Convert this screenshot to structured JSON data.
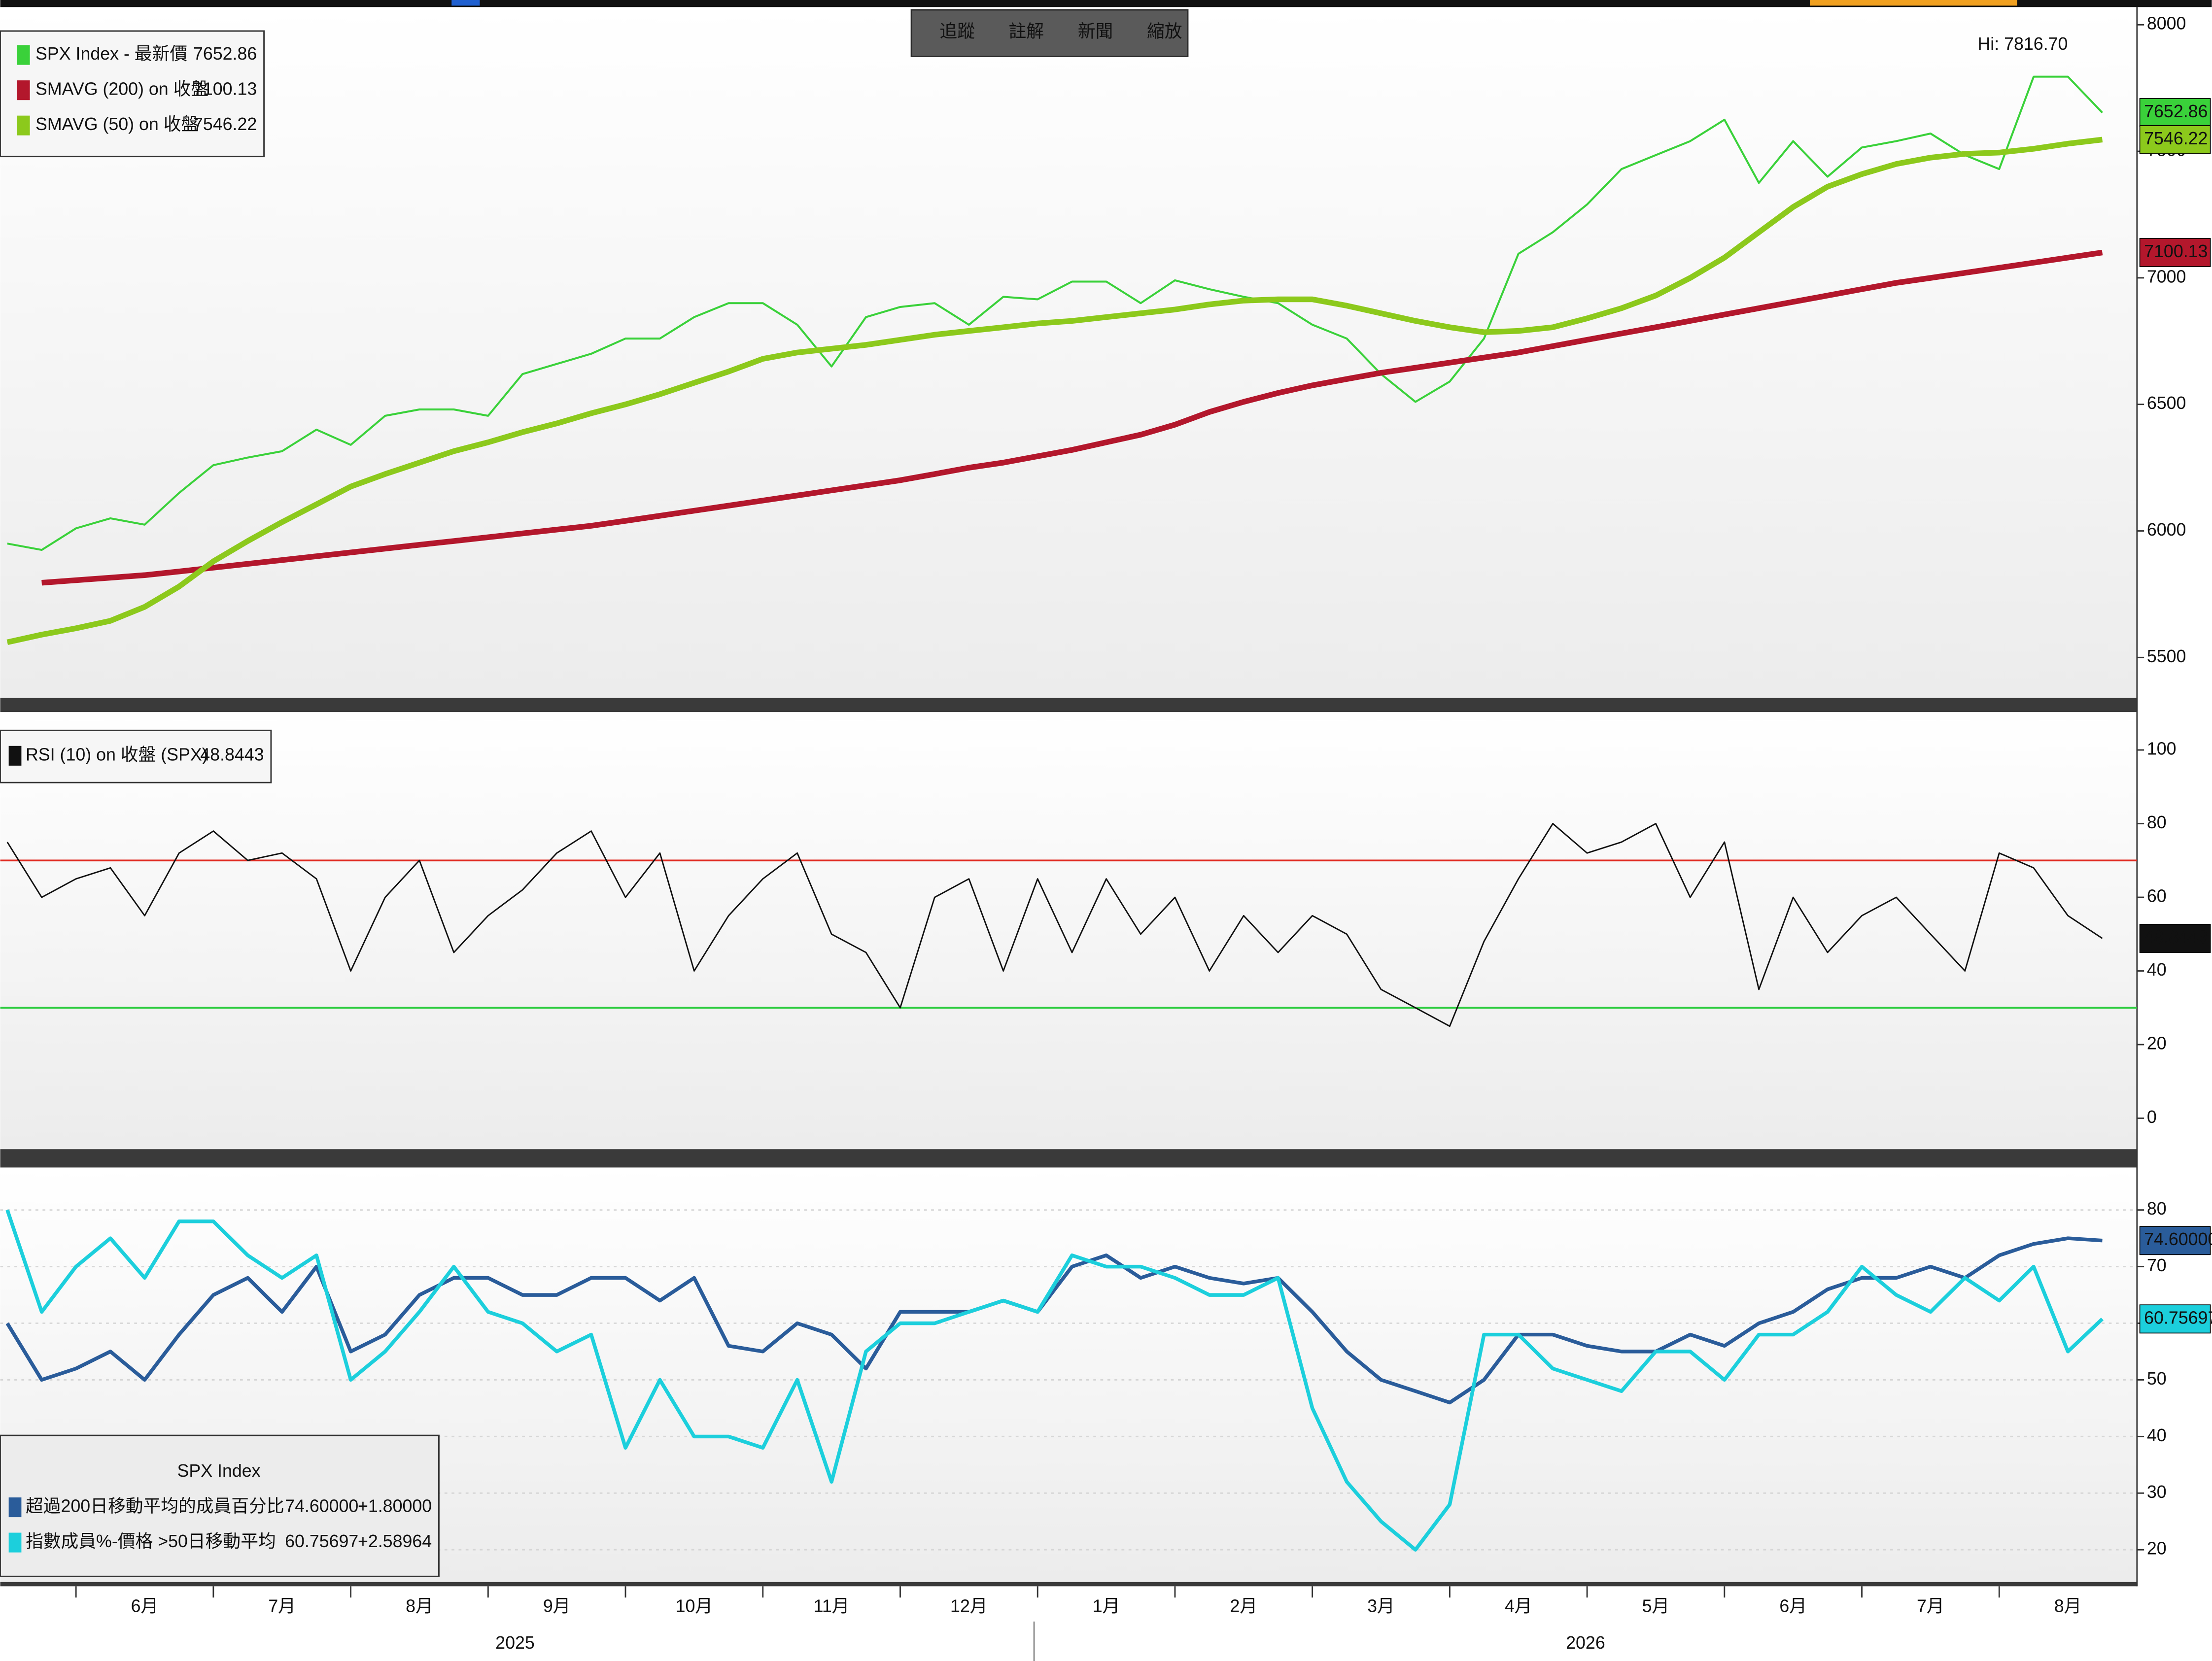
{
  "toolbar": [
    "追蹤",
    "註解",
    "新聞",
    "縮放"
  ],
  "chart_data": [
    {
      "type": "line",
      "annotation": "Hi: 7816.70",
      "annotation_color": "#7ed957",
      "ylim": [
        5340,
        8070
      ],
      "yticks": [
        5500,
        6000,
        6500,
        7000,
        7500,
        8000
      ],
      "series": [
        {
          "name": "SPX Index - 最新價",
          "color": "#3ad13a",
          "width": 1.4,
          "values": [
            5950,
            5925,
            6010,
            6050,
            6025,
            6150,
            6260,
            6290,
            6315,
            6400,
            6340,
            6455,
            6480,
            6480,
            6455,
            6620,
            6660,
            6700,
            6760,
            6760,
            6845,
            6900,
            6900,
            6815,
            6650,
            6845,
            6885,
            6900,
            6815,
            6925,
            6915,
            6985,
            6985,
            6900,
            6990,
            6955,
            6925,
            6900,
            6815,
            6760,
            6620,
            6510,
            6590,
            6760,
            7095,
            7180,
            7290,
            7430,
            7485,
            7540,
            7625,
            7375,
            7540,
            7400,
            7515,
            7540,
            7570,
            7485,
            7430,
            7795,
            7795,
            7652.86
          ]
        },
        {
          "name": "SMAVG (200)  on 收盤",
          "color": "#b3172c",
          "width": 4,
          "values": [
            null,
            5795,
            5805,
            5815,
            5825,
            5840,
            5855,
            5870,
            5885,
            5900,
            5915,
            5930,
            5945,
            5960,
            5975,
            5990,
            6005,
            6020,
            6040,
            6060,
            6080,
            6100,
            6120,
            6140,
            6160,
            6180,
            6200,
            6225,
            6250,
            6270,
            6295,
            6320,
            6350,
            6380,
            6420,
            6470,
            6510,
            6545,
            6575,
            6600,
            6625,
            6645,
            6665,
            6685,
            6705,
            6730,
            6755,
            6780,
            6805,
            6830,
            6855,
            6880,
            6905,
            6930,
            6955,
            6980,
            7000,
            7020,
            7040,
            7060,
            7080,
            7100.13
          ]
        },
        {
          "name": "SMAVG (50)  on 收盤",
          "color": "#8cc91c",
          "width": 4,
          "values": [
            5560,
            5590,
            5615,
            5645,
            5700,
            5780,
            5880,
            5960,
            6035,
            6105,
            6175,
            6225,
            6270,
            6315,
            6350,
            6390,
            6425,
            6465,
            6500,
            6540,
            6585,
            6630,
            6680,
            6705,
            6720,
            6735,
            6755,
            6775,
            6790,
            6805,
            6820,
            6830,
            6845,
            6860,
            6875,
            6895,
            6910,
            6915,
            6915,
            6890,
            6860,
            6830,
            6805,
            6785,
            6790,
            6805,
            6840,
            6880,
            6930,
            7000,
            7080,
            7180,
            7280,
            7360,
            7410,
            7450,
            7475,
            7490,
            7495,
            7510,
            7530,
            7546.22
          ]
        }
      ]
    },
    {
      "type": "line",
      "ylim": [
        -8.4,
        110.3
      ],
      "yticks": [
        0,
        20,
        40,
        60,
        80,
        100
      ],
      "hlines": [
        {
          "value": 70,
          "color": "#e0281e"
        },
        {
          "value": 30,
          "color": "#2ecc40"
        }
      ],
      "series": [
        {
          "name": "RSI (10)  on 收盤 (SPX)",
          "color": "#111111",
          "width": 1,
          "values": [
            75,
            60,
            65,
            68,
            55,
            72,
            78,
            70,
            72,
            65,
            40,
            60,
            70,
            45,
            55,
            62,
            72,
            78,
            60,
            72,
            40,
            55,
            65,
            72,
            50,
            45,
            30,
            60,
            65,
            40,
            65,
            45,
            65,
            50,
            60,
            40,
            55,
            45,
            55,
            50,
            35,
            30,
            25,
            48,
            65,
            80,
            72,
            75,
            80,
            60,
            75,
            35,
            60,
            45,
            55,
            60,
            50,
            40,
            72,
            68,
            55,
            48.8443
          ]
        }
      ]
    },
    {
      "type": "line",
      "legend_title": "SPX Index",
      "ylim": [
        14.3,
        87.5
      ],
      "yticks": [
        20,
        30,
        40,
        50,
        60,
        70,
        80
      ],
      "grid": true,
      "categories": [
        null,
        null,
        null,
        null,
        "6月",
        null,
        null,
        null,
        "7月",
        null,
        null,
        null,
        "8月",
        null,
        null,
        null,
        "9月",
        null,
        null,
        null,
        "10月",
        null,
        null,
        null,
        "11月",
        null,
        null,
        null,
        "12月",
        null,
        null,
        null,
        "1月",
        null,
        null,
        null,
        "2月",
        null,
        null,
        null,
        "3月",
        null,
        null,
        null,
        "4月",
        null,
        null,
        null,
        "5月",
        null,
        null,
        null,
        "6月",
        null,
        null,
        null,
        "7月",
        null,
        null,
        null,
        "8月",
        null
      ],
      "year_labels": [
        "2025",
        "2026"
      ],
      "series": [
        {
          "name": "超過200日移動平均的成員百分比",
          "color": "#2a5c9a",
          "width": 2.6,
          "change": "+1.80000",
          "values": [
            60,
            50,
            52,
            55,
            50,
            58,
            65,
            68,
            62,
            70,
            55,
            58,
            65,
            68,
            68,
            65,
            65,
            68,
            68,
            64,
            68,
            56,
            55,
            60,
            58,
            52,
            62,
            62,
            62,
            64,
            62,
            70,
            72,
            68,
            70,
            68,
            67,
            68,
            62,
            55,
            50,
            48,
            46,
            50,
            58,
            58,
            56,
            55,
            55,
            58,
            56,
            60,
            62,
            66,
            68,
            68,
            70,
            68,
            72,
            74,
            75,
            74.6
          ],
          "value_labels": [
            null,
            null,
            null,
            null,
            null,
            null,
            null,
            null,
            null,
            null,
            null,
            null,
            null,
            null,
            null,
            null,
            null,
            null,
            null,
            null,
            null,
            null,
            null,
            null,
            null,
            null,
            null,
            null,
            null,
            null,
            null,
            null,
            null,
            null,
            null,
            null,
            null,
            null,
            null,
            null,
            null,
            null,
            null,
            null,
            null,
            null,
            null,
            null,
            null,
            null,
            null,
            null,
            null,
            null,
            null,
            null,
            null,
            null,
            null,
            null,
            null,
            "74.60000"
          ]
        },
        {
          "name": "指數成員%-價格 >50日移動平均",
          "color": "#1ccfdc",
          "width": 2.6,
          "change": "+2.58964",
          "values": [
            80,
            62,
            70,
            75,
            68,
            78,
            78,
            72,
            68,
            72,
            50,
            55,
            62,
            70,
            62,
            60,
            55,
            58,
            38,
            50,
            40,
            40,
            38,
            50,
            32,
            55,
            60,
            60,
            62,
            64,
            62,
            72,
            70,
            70,
            68,
            65,
            65,
            68,
            45,
            32,
            25,
            20,
            28,
            58,
            58,
            52,
            50,
            48,
            55,
            55,
            50,
            58,
            58,
            62,
            70,
            65,
            62,
            68,
            64,
            70,
            55,
            60.75697
          ]
        }
      ]
    }
  ]
}
